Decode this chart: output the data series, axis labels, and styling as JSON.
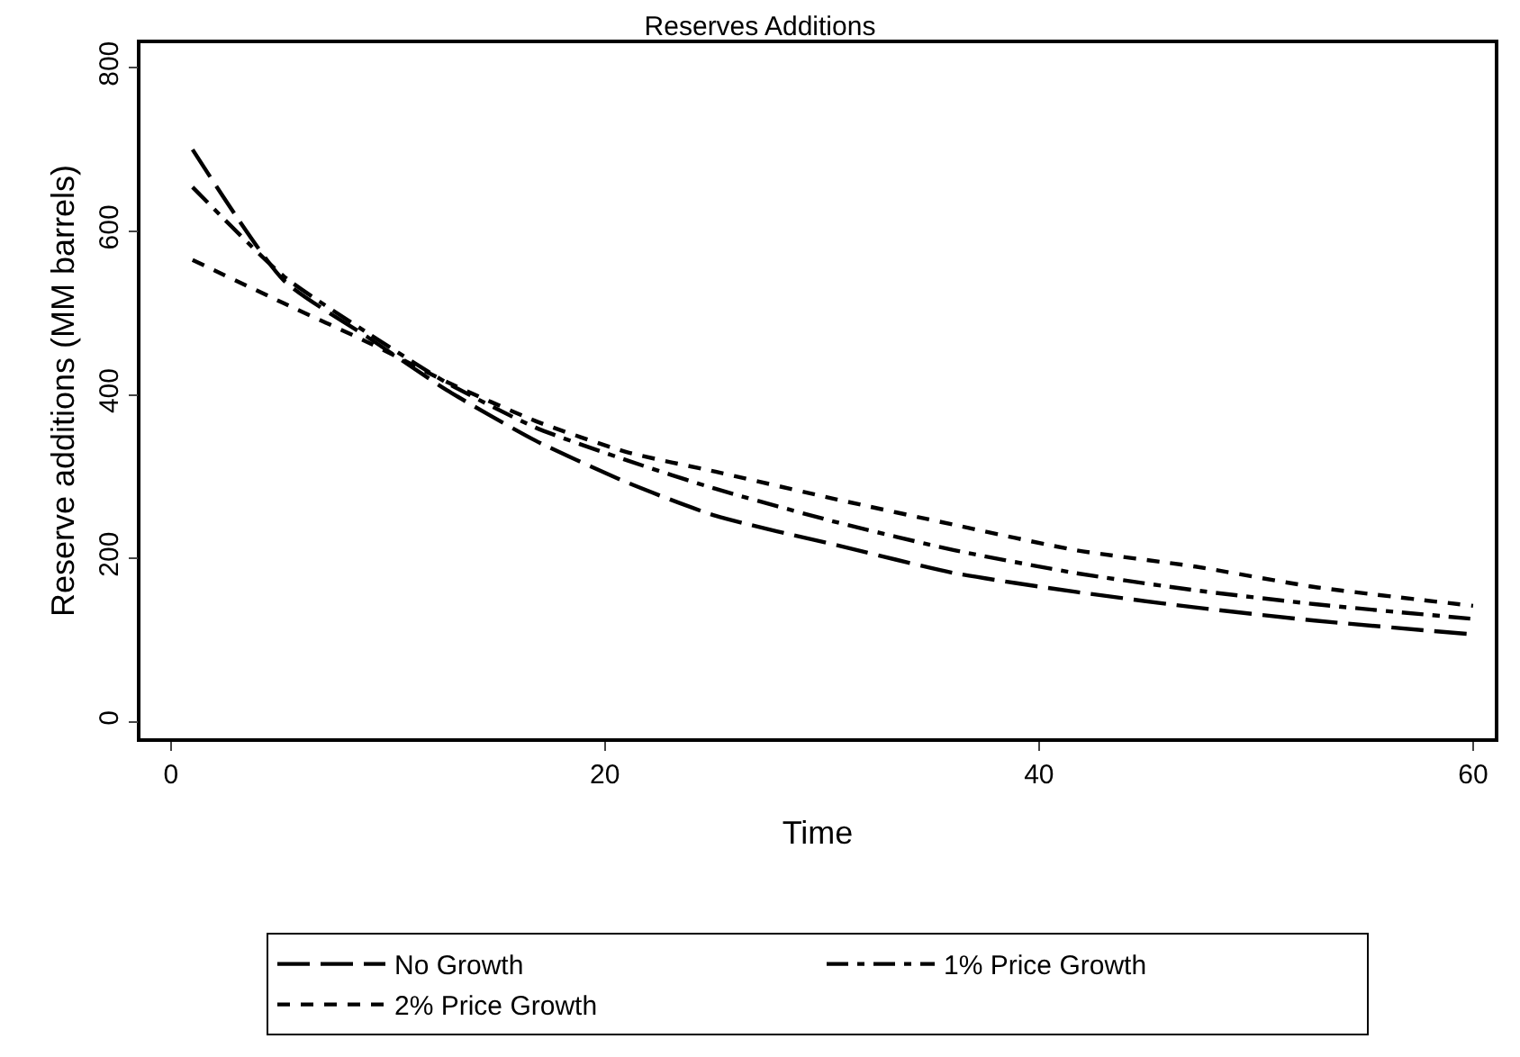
{
  "chart_data": {
    "type": "line",
    "title": "Reserves Additions",
    "xlabel": "Time",
    "ylabel": "Reserve additions (MM barrels)",
    "xlim": [
      -1.4,
      61
    ],
    "xticks": [
      0,
      20,
      40,
      60
    ],
    "ylim": [
      -20,
      830
    ],
    "yticks": [
      0,
      200,
      400,
      600,
      800
    ],
    "legend": "bottom",
    "marker": "none",
    "line_style": "dashed",
    "series": [
      {
        "name": "No Growth",
        "color": "#000000",
        "x": [
          1,
          5.2,
          9.1,
          12.7,
          16.8,
          21,
          25.1,
          30.7,
          36.1,
          41.7,
          47.2,
          52.7,
          60
        ],
        "values": [
          700,
          540,
          470,
          406,
          344,
          293,
          252,
          216,
          182,
          159,
          140,
          124,
          107
        ]
      },
      {
        "name": "1% Price Growth",
        "color": "#000000",
        "x": [
          1,
          5.2,
          9.1,
          12.7,
          16.8,
          21,
          25.1,
          30.7,
          36.1,
          41.7,
          47.2,
          52.7,
          60
        ],
        "values": [
          654,
          545,
          475,
          415,
          360,
          320,
          285,
          244,
          210,
          182,
          161,
          144,
          126
        ]
      },
      {
        "name": "2% Price Growth",
        "color": "#000000",
        "x": [
          1,
          5.2,
          9.1,
          12.7,
          16.8,
          21,
          25.1,
          30.7,
          36.1,
          41.7,
          47.2,
          52.7,
          60
        ],
        "values": [
          565,
          512,
          464,
          416,
          368,
          330,
          306,
          272,
          241,
          210,
          190,
          165,
          142
        ]
      }
    ]
  }
}
